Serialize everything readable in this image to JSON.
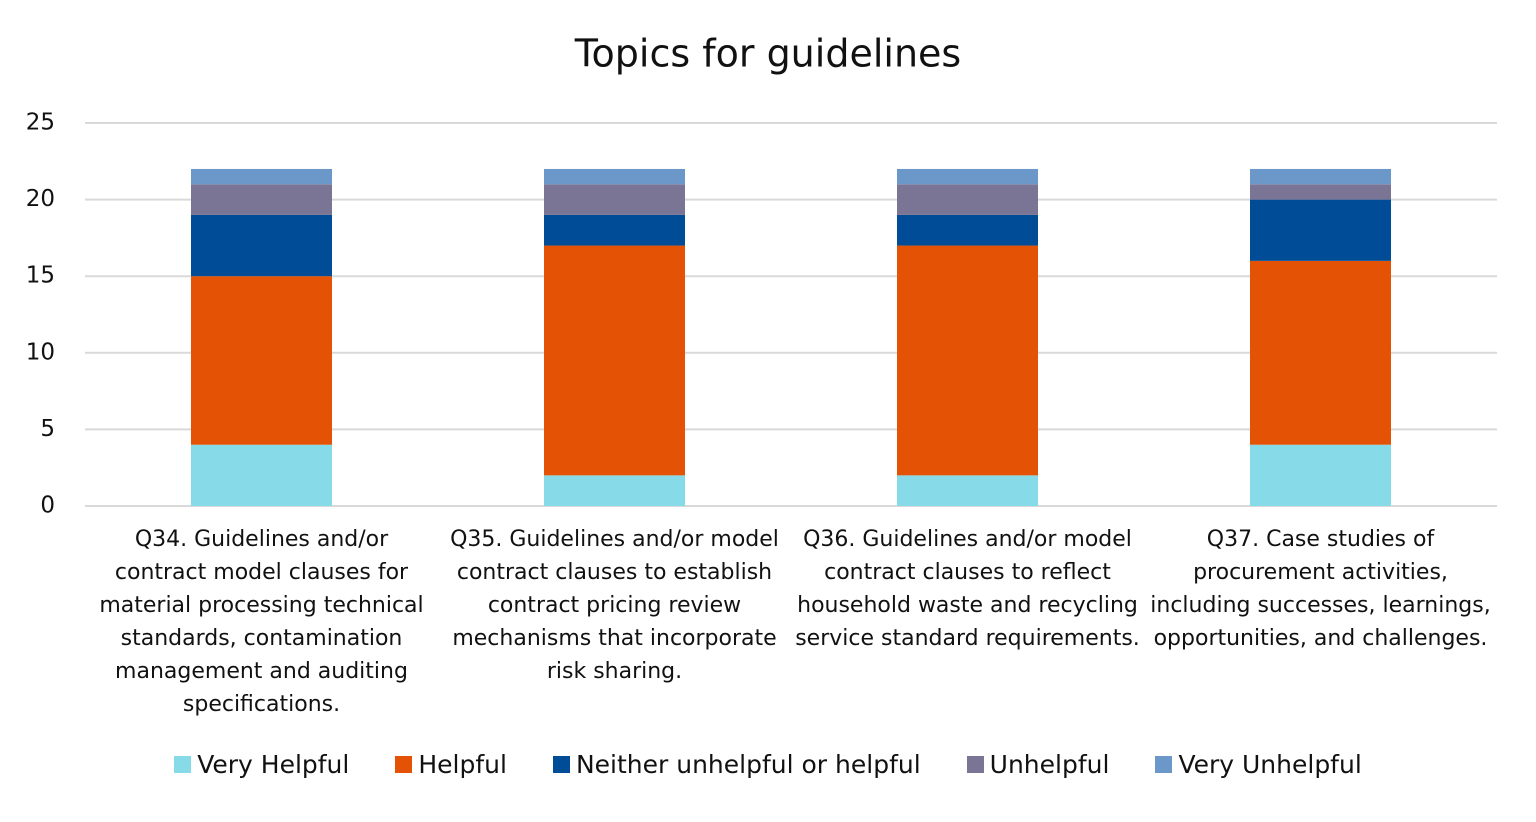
{
  "chart_data": {
    "type": "stacked_bar",
    "title": "Topics for guidelines",
    "categories": [
      "Q34. Guidelines and/or contract model clauses for material processing technical standards, contamination management and auditing specifications.",
      "Q35. Guidelines and/or model contract clauses to establish contract pricing review mechanisms that incorporate risk sharing.",
      "Q36. Guidelines and/or model contract clauses to reflect household waste and recycling service standard requirements.",
      "Q37. Case studies of procurement activities, including successes, learnings, opportunities, and challenges."
    ],
    "series": [
      {
        "name": "Very Helpful",
        "color": "#87dbe8",
        "values": [
          4,
          2,
          2,
          4
        ]
      },
      {
        "name": "Helpful",
        "color": "#e35205",
        "values": [
          11,
          15,
          15,
          12
        ]
      },
      {
        "name": "Neither unhelpful or helpful",
        "color": "#004c97",
        "values": [
          4,
          2,
          2,
          4
        ]
      },
      {
        "name": "Unhelpful",
        "color": "#7a7594",
        "values": [
          2,
          2,
          2,
          1
        ]
      },
      {
        "name": "Very Unhelpful",
        "color": "#6c98c9",
        "values": [
          1,
          1,
          1,
          1
        ]
      }
    ],
    "ylim": [
      0,
      25
    ],
    "yticks": [
      0,
      5,
      10,
      15,
      20,
      25
    ],
    "grid": true,
    "legend": "bottom"
  }
}
